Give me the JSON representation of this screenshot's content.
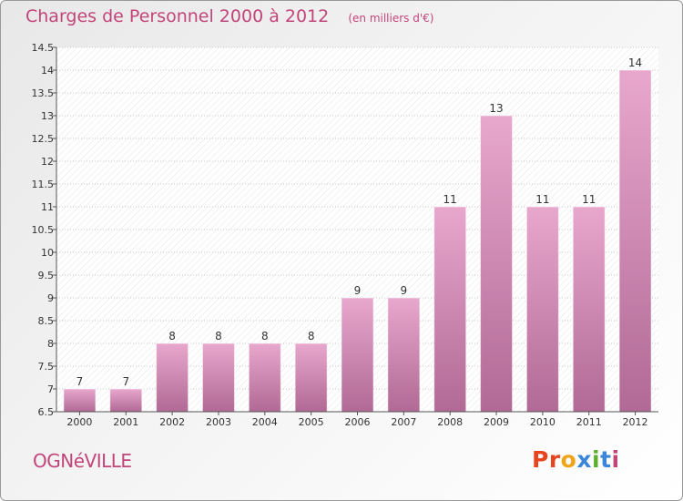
{
  "header": {
    "title": "Charges de Personnel 2000 à 2012",
    "subtitle": "(en milliers d'€)"
  },
  "footer": {
    "place": "OGNéVILLE",
    "logo_letters": [
      "P",
      "r",
      "o",
      "x",
      "i",
      "t",
      "i"
    ]
  },
  "colors": {
    "accent": "#c2457a",
    "bar_top": "#e8a7cd",
    "bar_bottom": "#b06a95",
    "logo": [
      "#e8441e",
      "#e8441e",
      "#f2a418",
      "#3a86d8",
      "#5bb12e",
      "#3a86d8",
      "#c2457a"
    ]
  },
  "chart_data": {
    "type": "bar",
    "title": "Charges de Personnel 2000 à 2012",
    "subtitle": "(en milliers d'€)",
    "categories": [
      "2000",
      "2001",
      "2002",
      "2003",
      "2004",
      "2005",
      "2006",
      "2007",
      "2008",
      "2009",
      "2010",
      "2011",
      "2012"
    ],
    "values": [
      7,
      7,
      8,
      8,
      8,
      8,
      9,
      9,
      11,
      13,
      11,
      11,
      14
    ],
    "data_labels": [
      "7",
      "7",
      "8",
      "8",
      "8",
      "8",
      "9",
      "9",
      "11",
      "13",
      "11",
      "11",
      "14"
    ],
    "ylim": [
      6.5,
      14.5
    ],
    "yticks": [
      "6.5",
      "7",
      "7.5",
      "8",
      "8.5",
      "9",
      "9.5",
      "10",
      "10.5",
      "11",
      "11.5",
      "12",
      "12.5",
      "13",
      "13.5",
      "14",
      "14.5"
    ],
    "grid": true
  }
}
